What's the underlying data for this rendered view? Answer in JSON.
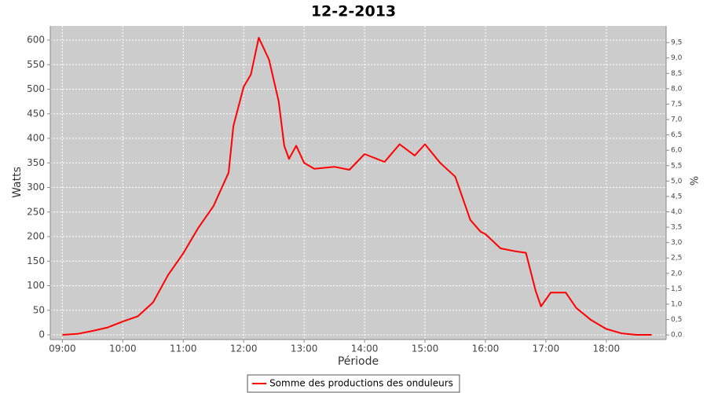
{
  "chart_data": {
    "type": "line",
    "title": "12-2-2013",
    "x_label": "Période",
    "y_label": "Watts",
    "y2_label": "%",
    "x": [
      9,
      9.25,
      9.5,
      9.75,
      10,
      10.25,
      10.5,
      10.75,
      11,
      11.25,
      11.5,
      11.75,
      11.83,
      12,
      12.12,
      12.25,
      12.42,
      12.58,
      12.67,
      12.75,
      12.87,
      13,
      13.17,
      13.5,
      13.75,
      14,
      14.33,
      14.58,
      14.83,
      15,
      15.25,
      15.5,
      15.75,
      15.92,
      16,
      16.25,
      16.5,
      16.67,
      16.83,
      16.92,
      17.08,
      17.33,
      17.5,
      17.75,
      18,
      18.25,
      18.5,
      18.75
    ],
    "series": [
      {
        "name": "Somme des productions des onduleurs",
        "color": "#ff0000",
        "values": [
          0,
          2,
          8,
          15,
          27,
          38,
          66,
          122,
          166,
          218,
          262,
          330,
          425,
          505,
          530,
          605,
          560,
          475,
          385,
          358,
          385,
          350,
          338,
          342,
          336,
          368,
          352,
          388,
          365,
          388,
          350,
          322,
          234,
          210,
          205,
          176,
          170,
          167,
          90,
          58,
          86,
          86,
          55,
          30,
          12,
          3,
          0,
          0
        ]
      }
    ],
    "xlim": [
      8.8,
      18.99
    ],
    "xticks": [
      {
        "value": 9,
        "label": "09:00"
      },
      {
        "value": 10,
        "label": "10:00"
      },
      {
        "value": 11,
        "label": "11:00"
      },
      {
        "value": 12,
        "label": "12:00"
      },
      {
        "value": 13,
        "label": "13:00"
      },
      {
        "value": 14,
        "label": "14:00"
      },
      {
        "value": 15,
        "label": "15:00"
      },
      {
        "value": 16,
        "label": "16:00"
      },
      {
        "value": 17,
        "label": "17:00"
      },
      {
        "value": 18,
        "label": "18:00"
      }
    ],
    "ylim": [
      -9.6,
      628.8
    ],
    "yticks": [
      0,
      50,
      100,
      150,
      200,
      250,
      300,
      350,
      400,
      450,
      500,
      550,
      600
    ],
    "y2lim": [
      -0.15,
      10.04
    ],
    "y2ticks": [
      {
        "value": 0,
        "label": "0,0"
      },
      {
        "value": 0.5,
        "label": "0,5"
      },
      {
        "value": 1,
        "label": "1,0"
      },
      {
        "value": 1.5,
        "label": "1,5"
      },
      {
        "value": 2,
        "label": "2,0"
      },
      {
        "value": 2.5,
        "label": "2,5"
      },
      {
        "value": 3,
        "label": "3,0"
      },
      {
        "value": 3.5,
        "label": "3,5"
      },
      {
        "value": 4,
        "label": "4,0"
      },
      {
        "value": 4.5,
        "label": "4,5"
      },
      {
        "value": 5,
        "label": "5,0"
      },
      {
        "value": 5.5,
        "label": "5,5"
      },
      {
        "value": 6,
        "label": "6,0"
      },
      {
        "value": 6.5,
        "label": "6,5"
      },
      {
        "value": 7,
        "label": "7,0"
      },
      {
        "value": 7.5,
        "label": "7,5"
      },
      {
        "value": 8,
        "label": "8,0"
      },
      {
        "value": 8.5,
        "label": "8,5"
      },
      {
        "value": 9,
        "label": "9,0"
      },
      {
        "value": 9.5,
        "label": "9,5"
      }
    ],
    "grid": true,
    "plot_background": "#cccccc",
    "legend": "bottom"
  }
}
